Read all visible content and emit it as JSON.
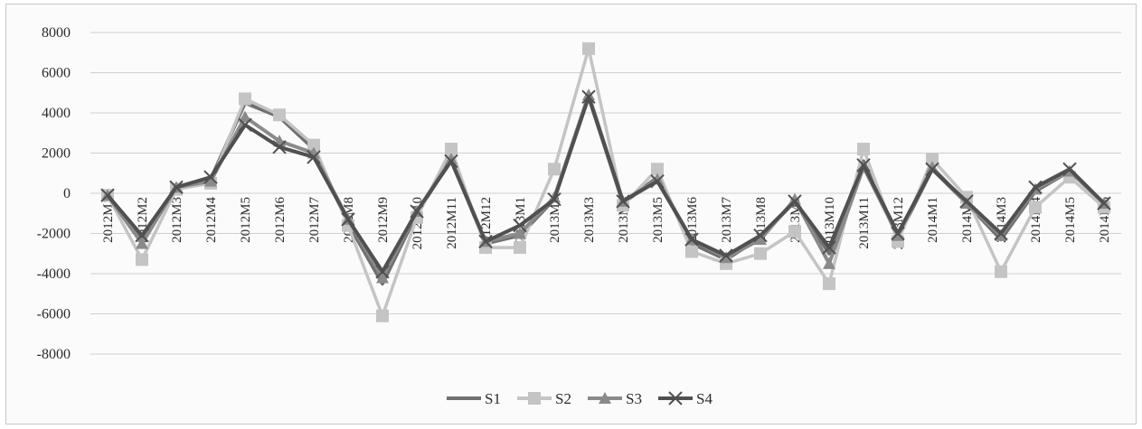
{
  "chart_data": {
    "type": "line",
    "title": "",
    "xlabel": "",
    "ylabel": "",
    "ylim": [
      -8000,
      8000
    ],
    "yticks": [
      8000,
      6000,
      4000,
      2000,
      0,
      -2000,
      -4000,
      -6000,
      -8000
    ],
    "grid": true,
    "legend_position": "bottom",
    "categories": [
      "2012M1",
      "2012M2",
      "2012M3",
      "2012M4",
      "2012M5",
      "2012M6",
      "2012M7",
      "2012M8",
      "2012M9",
      "2012M10",
      "2012M11",
      "2012M12",
      "2013M1",
      "2013M2",
      "2013M3",
      "2013M4",
      "2013M5",
      "2013M6",
      "2013M7",
      "2013M8",
      "2013M9",
      "2013M10",
      "2013M11",
      "2013M12",
      "2014M1",
      "2014M2",
      "2014M3",
      "2014M4",
      "2014M5",
      "2014M6"
    ],
    "series": [
      {
        "name": "S1",
        "color": "#707070",
        "marker": "none",
        "values": [
          -100,
          -2200,
          200,
          700,
          4500,
          3800,
          2200,
          -1500,
          -4500,
          -1000,
          1700,
          -2500,
          -2100,
          -300,
          4800,
          -500,
          800,
          -2500,
          -3300,
          -2200,
          -400,
          -3000,
          1600,
          -2200,
          1200,
          -500,
          -2300,
          100,
          1100,
          -500
        ]
      },
      {
        "name": "S2",
        "color": "#c4c4c4",
        "marker": "square",
        "values": [
          -100,
          -3300,
          200,
          500,
          4700,
          3900,
          2400,
          -1600,
          -6100,
          -1200,
          2200,
          -2700,
          -2700,
          1200,
          7200,
          -600,
          1200,
          -2900,
          -3500,
          -3000,
          -1900,
          -4500,
          2200,
          -2400,
          1700,
          -200,
          -3900,
          -700,
          800,
          -700
        ]
      },
      {
        "name": "S3",
        "color": "#8a8a8a",
        "marker": "triangle",
        "values": [
          -100,
          -2500,
          300,
          600,
          3800,
          2600,
          2000,
          -1300,
          -4200,
          -900,
          1700,
          -2400,
          -2000,
          -200,
          4900,
          -400,
          700,
          -2300,
          -3200,
          -2300,
          -300,
          -3500,
          1300,
          -2100,
          1300,
          -500,
          -2100,
          200,
          1100,
          -500
        ]
      },
      {
        "name": "S4",
        "color": "#505050",
        "marker": "x",
        "values": [
          -100,
          -2100,
          300,
          800,
          3400,
          2300,
          1800,
          -1300,
          -3900,
          -900,
          1600,
          -2400,
          -1600,
          -300,
          4800,
          -400,
          600,
          -2300,
          -3100,
          -2100,
          -400,
          -2700,
          1400,
          -2000,
          1200,
          -400,
          -2000,
          300,
          1200,
          -500
        ]
      }
    ]
  }
}
